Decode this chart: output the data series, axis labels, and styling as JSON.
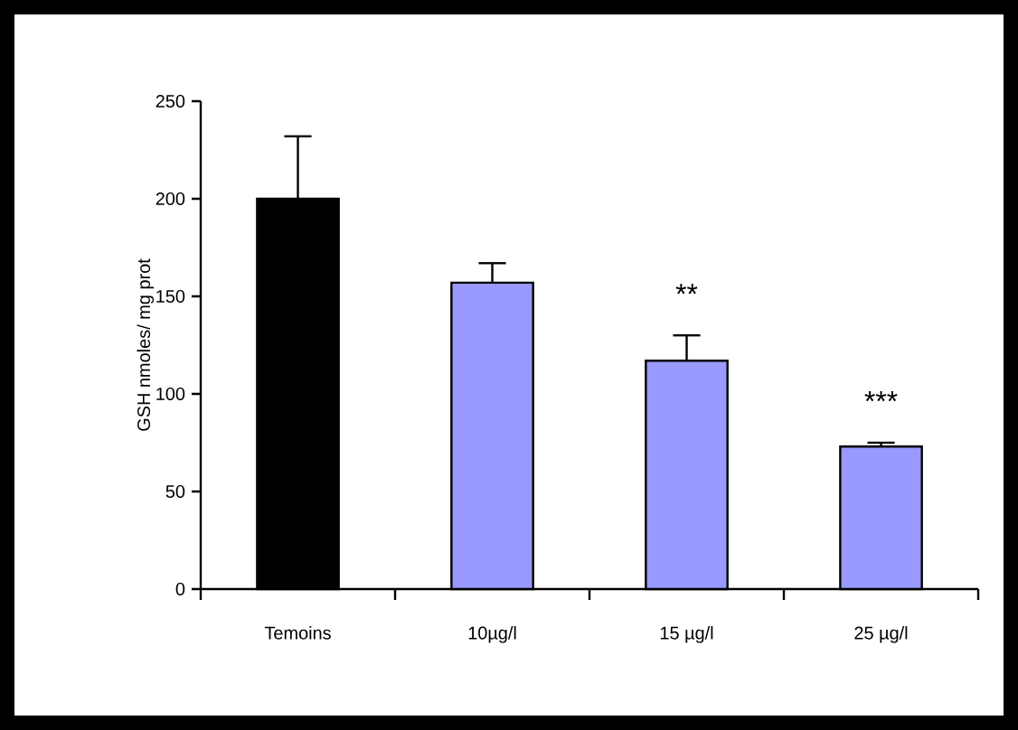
{
  "chart_data": {
    "type": "bar",
    "ylabel": "GSH nmoles/ mg prot",
    "categories": [
      "Temoins",
      "10µg/l",
      "15 µg/l",
      "25 µg/l"
    ],
    "values": [
      200,
      157,
      117,
      73
    ],
    "colors": [
      "#000000",
      "#9999ff",
      "#9999ff",
      "#9999ff"
    ],
    "errors": [
      [
        200,
        232
      ],
      [
        157,
        167
      ],
      [
        117,
        130
      ],
      [
        73,
        75
      ]
    ],
    "ylim": [
      0,
      250
    ],
    "yticks": [
      0,
      50,
      100,
      150,
      200,
      250
    ],
    "grid": false,
    "annotations": [
      "**",
      "***"
    ]
  }
}
